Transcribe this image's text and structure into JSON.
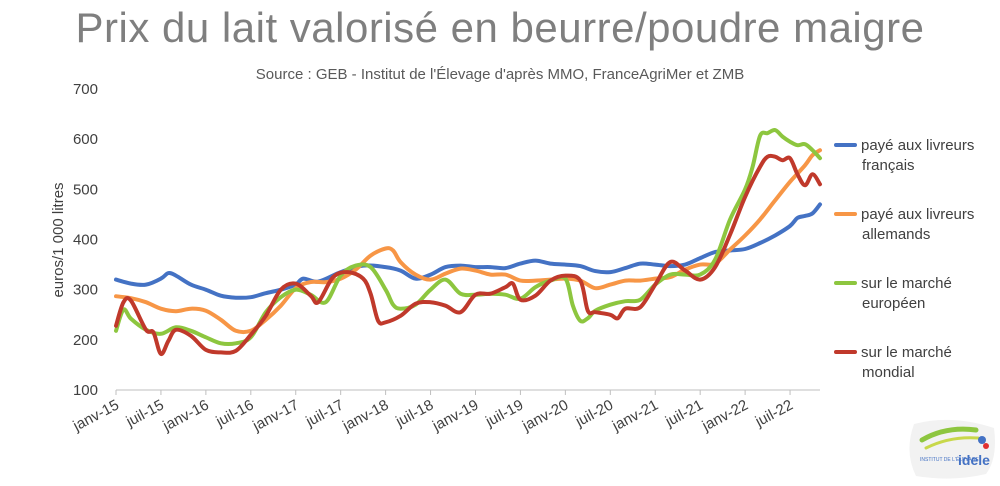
{
  "chart_data": {
    "type": "line",
    "title": "Prix du lait valorisé en beurre/poudre maigre",
    "subtitle": "Source : GEB - Institut de l'Élevage d'après MMO, FranceAgriMer et ZMB",
    "ylabel": "euros/1 000 litres",
    "xlabel": "",
    "ylim": [
      100,
      700
    ],
    "yticks": [
      100,
      200,
      300,
      400,
      500,
      600,
      700
    ],
    "xrange": [
      0,
      94
    ],
    "xticks": [
      {
        "label": "janv-15",
        "month": 0
      },
      {
        "label": "juil-15",
        "month": 6
      },
      {
        "label": "janv-16",
        "month": 12
      },
      {
        "label": "juil-16",
        "month": 18
      },
      {
        "label": "janv-17",
        "month": 24
      },
      {
        "label": "juil-17",
        "month": 30
      },
      {
        "label": "janv-18",
        "month": 36
      },
      {
        "label": "juil-18",
        "month": 42
      },
      {
        "label": "janv-19",
        "month": 48
      },
      {
        "label": "juil-19",
        "month": 54
      },
      {
        "label": "janv-20",
        "month": 60
      },
      {
        "label": "juil-20",
        "month": 66
      },
      {
        "label": "janv-21",
        "month": 72
      },
      {
        "label": "juil-21",
        "month": 78
      },
      {
        "label": "janv-22",
        "month": 84
      },
      {
        "label": "juil-22",
        "month": 90
      }
    ],
    "grid": false,
    "legend_position": "right",
    "series": [
      {
        "name": "payé aux livreurs français",
        "legend_lines": [
          "payé aux livreurs",
          "français"
        ],
        "color": "#4472c4",
        "points": [
          [
            0,
            320
          ],
          [
            2,
            312
          ],
          [
            4,
            310
          ],
          [
            6,
            322
          ],
          [
            7,
            333
          ],
          [
            8,
            328
          ],
          [
            10,
            310
          ],
          [
            12,
            300
          ],
          [
            14,
            288
          ],
          [
            16,
            284
          ],
          [
            18,
            285
          ],
          [
            20,
            293
          ],
          [
            22,
            300
          ],
          [
            24,
            310
          ],
          [
            25,
            322
          ],
          [
            27,
            316
          ],
          [
            30,
            335
          ],
          [
            33,
            348
          ],
          [
            36,
            345
          ],
          [
            38,
            338
          ],
          [
            40,
            322
          ],
          [
            42,
            330
          ],
          [
            44,
            345
          ],
          [
            46,
            348
          ],
          [
            48,
            345
          ],
          [
            50,
            345
          ],
          [
            52,
            343
          ],
          [
            54,
            352
          ],
          [
            56,
            358
          ],
          [
            58,
            352
          ],
          [
            60,
            350
          ],
          [
            62,
            347
          ],
          [
            64,
            337
          ],
          [
            66,
            335
          ],
          [
            68,
            343
          ],
          [
            70,
            352
          ],
          [
            72,
            350
          ],
          [
            74,
            347
          ],
          [
            76,
            350
          ],
          [
            78,
            363
          ],
          [
            80,
            375
          ],
          [
            82,
            378
          ],
          [
            84,
            381
          ],
          [
            86,
            393
          ],
          [
            88,
            408
          ],
          [
            90,
            427
          ],
          [
            91,
            443
          ],
          [
            92,
            447
          ],
          [
            93,
            452
          ],
          [
            94,
            470
          ]
        ]
      },
      {
        "name": "payé aux livreurs allemands",
        "legend_lines": [
          "payé aux livreurs",
          "allemands"
        ],
        "color": "#f79646",
        "points": [
          [
            0,
            287
          ],
          [
            2,
            283
          ],
          [
            4,
            275
          ],
          [
            6,
            262
          ],
          [
            8,
            257
          ],
          [
            10,
            262
          ],
          [
            12,
            258
          ],
          [
            14,
            240
          ],
          [
            16,
            218
          ],
          [
            18,
            218
          ],
          [
            20,
            240
          ],
          [
            22,
            268
          ],
          [
            24,
            303
          ],
          [
            26,
            315
          ],
          [
            28,
            315
          ],
          [
            30,
            322
          ],
          [
            32,
            340
          ],
          [
            34,
            368
          ],
          [
            36,
            382
          ],
          [
            37,
            378
          ],
          [
            38,
            355
          ],
          [
            40,
            330
          ],
          [
            42,
            320
          ],
          [
            44,
            332
          ],
          [
            46,
            342
          ],
          [
            48,
            338
          ],
          [
            50,
            330
          ],
          [
            52,
            330
          ],
          [
            54,
            318
          ],
          [
            56,
            318
          ],
          [
            58,
            320
          ],
          [
            60,
            322
          ],
          [
            62,
            318
          ],
          [
            64,
            303
          ],
          [
            66,
            310
          ],
          [
            68,
            318
          ],
          [
            70,
            318
          ],
          [
            72,
            322
          ],
          [
            74,
            325
          ],
          [
            76,
            340
          ],
          [
            78,
            350
          ],
          [
            80,
            352
          ],
          [
            82,
            380
          ],
          [
            84,
            408
          ],
          [
            86,
            440
          ],
          [
            88,
            478
          ],
          [
            90,
            515
          ],
          [
            92,
            548
          ],
          [
            93,
            568
          ],
          [
            94,
            578
          ]
        ]
      },
      {
        "name": "sur le marché européen",
        "legend_lines": [
          "sur le marché",
          "européen"
        ],
        "color": "#8dc63f",
        "points": [
          [
            0,
            218
          ],
          [
            1,
            260
          ],
          [
            2,
            242
          ],
          [
            4,
            220
          ],
          [
            6,
            212
          ],
          [
            8,
            225
          ],
          [
            10,
            218
          ],
          [
            12,
            205
          ],
          [
            14,
            193
          ],
          [
            16,
            193
          ],
          [
            18,
            205
          ],
          [
            20,
            255
          ],
          [
            22,
            285
          ],
          [
            24,
            300
          ],
          [
            26,
            290
          ],
          [
            28,
            275
          ],
          [
            30,
            328
          ],
          [
            32,
            348
          ],
          [
            34,
            345
          ],
          [
            36,
            300
          ],
          [
            37,
            270
          ],
          [
            38,
            262
          ],
          [
            40,
            270
          ],
          [
            42,
            300
          ],
          [
            44,
            320
          ],
          [
            46,
            292
          ],
          [
            48,
            290
          ],
          [
            50,
            292
          ],
          [
            52,
            290
          ],
          [
            54,
            282
          ],
          [
            56,
            305
          ],
          [
            58,
            318
          ],
          [
            60,
            322
          ],
          [
            61,
            268
          ],
          [
            62,
            238
          ],
          [
            63,
            243
          ],
          [
            64,
            258
          ],
          [
            66,
            270
          ],
          [
            68,
            277
          ],
          [
            70,
            280
          ],
          [
            72,
            310
          ],
          [
            74,
            330
          ],
          [
            76,
            330
          ],
          [
            78,
            330
          ],
          [
            80,
            360
          ],
          [
            82,
            440
          ],
          [
            84,
            500
          ],
          [
            85,
            545
          ],
          [
            86,
            607
          ],
          [
            87,
            612
          ],
          [
            88,
            618
          ],
          [
            89,
            605
          ],
          [
            90,
            595
          ],
          [
            91,
            588
          ],
          [
            92,
            590
          ],
          [
            93,
            578
          ],
          [
            94,
            562
          ]
        ]
      },
      {
        "name": "sur le marché mondial",
        "legend_lines": [
          "sur le marché",
          "mondial"
        ],
        "color": "#c0392b",
        "points": [
          [
            0,
            228
          ],
          [
            1,
            275
          ],
          [
            2,
            278
          ],
          [
            4,
            220
          ],
          [
            5,
            215
          ],
          [
            6,
            172
          ],
          [
            7,
            198
          ],
          [
            8,
            220
          ],
          [
            10,
            208
          ],
          [
            12,
            180
          ],
          [
            14,
            175
          ],
          [
            16,
            178
          ],
          [
            18,
            210
          ],
          [
            20,
            248
          ],
          [
            22,
            300
          ],
          [
            24,
            312
          ],
          [
            26,
            288
          ],
          [
            27,
            275
          ],
          [
            29,
            325
          ],
          [
            31,
            335
          ],
          [
            33,
            322
          ],
          [
            34,
            292
          ],
          [
            35,
            238
          ],
          [
            36,
            235
          ],
          [
            38,
            248
          ],
          [
            40,
            272
          ],
          [
            42,
            275
          ],
          [
            44,
            268
          ],
          [
            46,
            255
          ],
          [
            48,
            290
          ],
          [
            50,
            292
          ],
          [
            52,
            305
          ],
          [
            53,
            312
          ],
          [
            54,
            280
          ],
          [
            56,
            288
          ],
          [
            58,
            318
          ],
          [
            60,
            328
          ],
          [
            62,
            318
          ],
          [
            63,
            258
          ],
          [
            64,
            255
          ],
          [
            66,
            250
          ],
          [
            67,
            243
          ],
          [
            68,
            262
          ],
          [
            70,
            265
          ],
          [
            72,
            310
          ],
          [
            74,
            355
          ],
          [
            76,
            338
          ],
          [
            78,
            320
          ],
          [
            80,
            345
          ],
          [
            82,
            410
          ],
          [
            84,
            485
          ],
          [
            86,
            545
          ],
          [
            87,
            565
          ],
          [
            88,
            565
          ],
          [
            89,
            558
          ],
          [
            90,
            562
          ],
          [
            91,
            530
          ],
          [
            92,
            508
          ],
          [
            93,
            530
          ],
          [
            94,
            510
          ]
        ]
      }
    ]
  },
  "logo": {
    "text": "idele",
    "small_text": "INSTITUT DE L'ÉLEVAGE"
  }
}
